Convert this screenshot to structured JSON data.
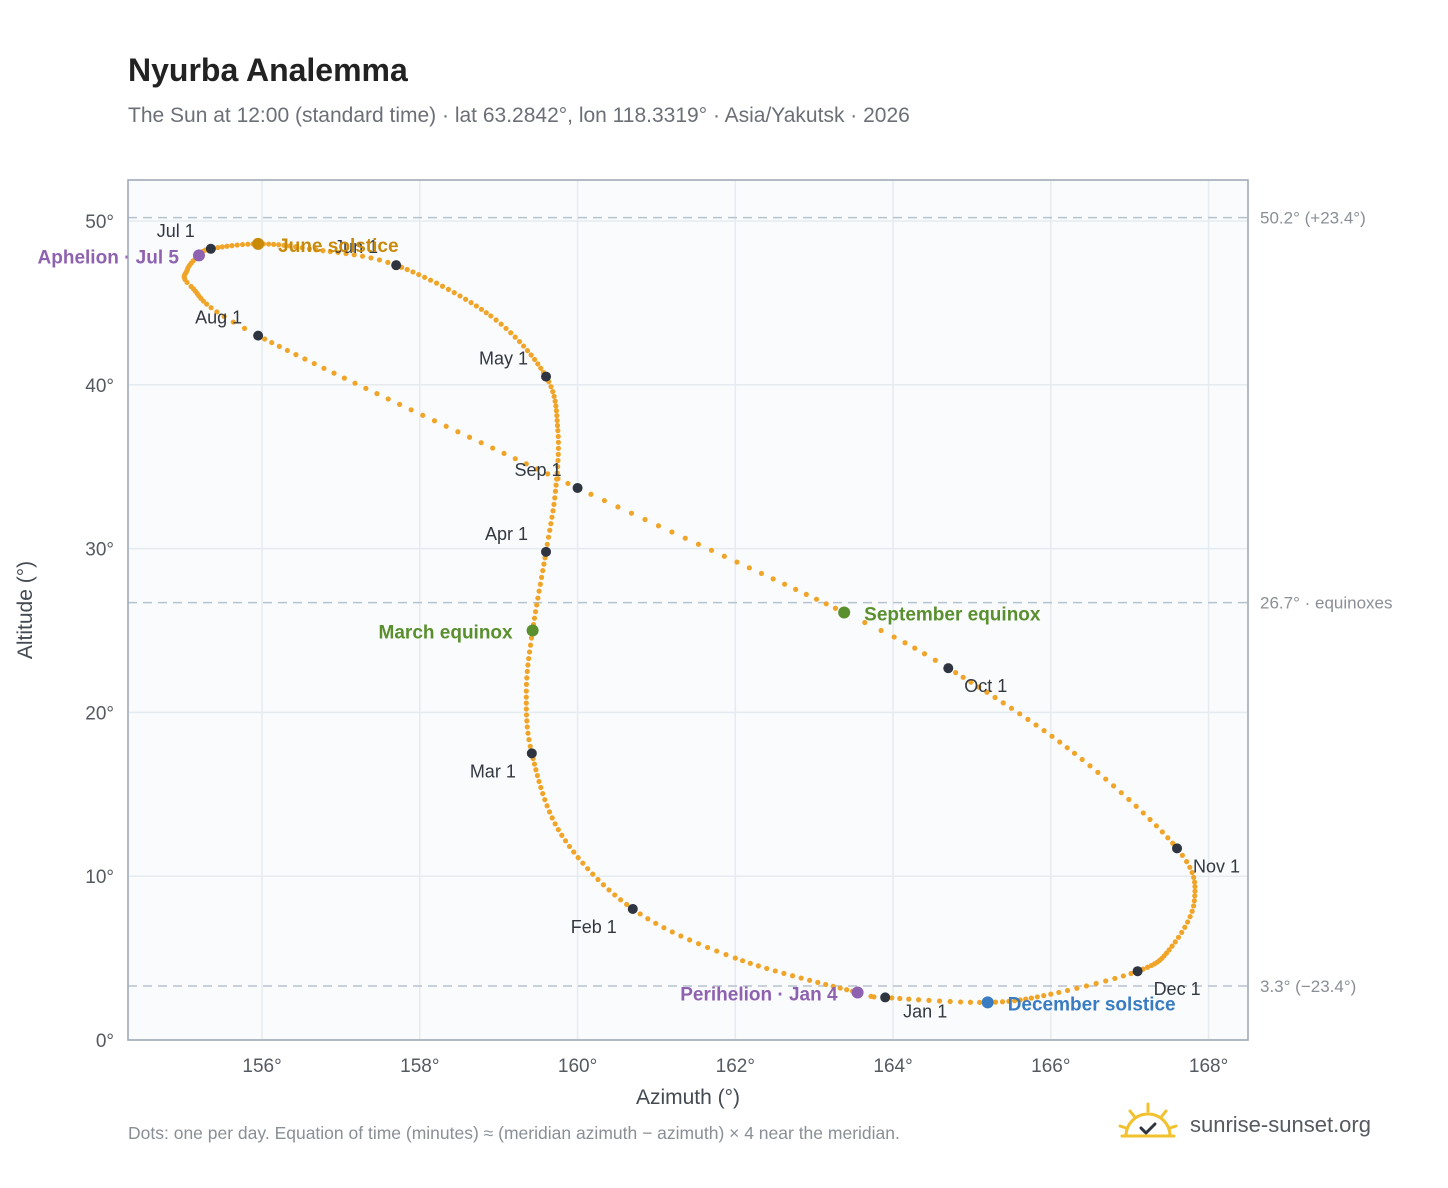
{
  "header": {
    "title": "Nyurba Analemma",
    "subtitle": "The Sun at 12:00 (standard time) · lat 63.2842°, lon 118.3319° · Asia/Yakutsk · 2026"
  },
  "footnote": "Dots: one per day. Equation of time (minutes) ≈ (meridian azimuth − azimuth) × 4 near the meridian.",
  "brand": {
    "name": "sunrise-sunset.org",
    "icon": "sun-check-icon"
  },
  "colors": {
    "curve": "#f0a529",
    "month_marker": "#2f3540",
    "june_solstice": "#c98a0a",
    "december_solstice": "#3a7cc2",
    "equinox": "#5a8f2e",
    "apsis": "#8e62b0",
    "reference_line": "#b7c2cf",
    "plot_bg": "#f9fbfd",
    "grid": "#e6ebf0",
    "axis": "#9aa5b3"
  },
  "chart_data": {
    "type": "scatter",
    "xlabel": "Azimuth (°)",
    "ylabel": "Altitude (°)",
    "xlim": [
      154.3,
      168.5
    ],
    "ylim": [
      0,
      52.5
    ],
    "xticks": [
      156,
      158,
      160,
      162,
      164,
      166,
      168
    ],
    "yticks": [
      0,
      10,
      20,
      30,
      40,
      50
    ],
    "tick_suffix": "°",
    "grid": true,
    "dot_interval_days": 1,
    "track_anchors": [
      {
        "day": 1,
        "az": 163.9,
        "alt": 2.6
      },
      {
        "day": 4,
        "az": 163.55,
        "alt": 2.9
      },
      {
        "day": 20,
        "az": 162.0,
        "alt": 5.0
      },
      {
        "day": 32,
        "az": 160.7,
        "alt": 8.0
      },
      {
        "day": 46,
        "az": 159.8,
        "alt": 12.5
      },
      {
        "day": 60,
        "az": 159.42,
        "alt": 17.5
      },
      {
        "day": 70,
        "az": 159.35,
        "alt": 21.3
      },
      {
        "day": 79,
        "az": 159.43,
        "alt": 25.0
      },
      {
        "day": 91,
        "az": 159.6,
        "alt": 29.8
      },
      {
        "day": 100,
        "az": 159.72,
        "alt": 33.5
      },
      {
        "day": 110,
        "az": 159.75,
        "alt": 37.2
      },
      {
        "day": 121,
        "az": 159.6,
        "alt": 40.5
      },
      {
        "day": 135,
        "az": 158.9,
        "alt": 44.2
      },
      {
        "day": 152,
        "az": 157.7,
        "alt": 47.3
      },
      {
        "day": 163,
        "az": 156.6,
        "alt": 48.3
      },
      {
        "day": 172,
        "az": 155.95,
        "alt": 48.6
      },
      {
        "day": 182,
        "az": 155.35,
        "alt": 48.3
      },
      {
        "day": 186,
        "az": 155.2,
        "alt": 47.9
      },
      {
        "day": 193,
        "az": 155.05,
        "alt": 47.0
      },
      {
        "day": 200,
        "az": 155.1,
        "alt": 46.0
      },
      {
        "day": 213,
        "az": 155.95,
        "alt": 43.0
      },
      {
        "day": 244,
        "az": 160.0,
        "alt": 33.7
      },
      {
        "day": 266,
        "az": 163.38,
        "alt": 26.1
      },
      {
        "day": 274,
        "az": 164.7,
        "alt": 22.7
      },
      {
        "day": 290,
        "az": 166.3,
        "alt": 17.5
      },
      {
        "day": 305,
        "az": 167.6,
        "alt": 11.7
      },
      {
        "day": 315,
        "az": 167.82,
        "alt": 8.5
      },
      {
        "day": 325,
        "az": 167.5,
        "alt": 5.5
      },
      {
        "day": 335,
        "az": 167.1,
        "alt": 4.2
      },
      {
        "day": 345,
        "az": 166.0,
        "alt": 2.8
      },
      {
        "day": 355,
        "az": 165.2,
        "alt": 2.3
      },
      {
        "day": 366,
        "az": 163.9,
        "alt": 2.6
      }
    ],
    "month_markers": [
      {
        "label": "Jan 1",
        "az": 163.9,
        "alt": 2.6,
        "anchor": "start",
        "dx": 18,
        "dy": 20
      },
      {
        "label": "Feb 1",
        "az": 160.7,
        "alt": 8.0,
        "anchor": "end",
        "dx": -16,
        "dy": 24
      },
      {
        "label": "Mar 1",
        "az": 159.42,
        "alt": 17.5,
        "anchor": "end",
        "dx": -16,
        "dy": 24
      },
      {
        "label": "Apr 1",
        "az": 159.6,
        "alt": 29.8,
        "anchor": "end",
        "dx": -18,
        "dy": -12
      },
      {
        "label": "May 1",
        "az": 159.6,
        "alt": 40.5,
        "anchor": "end",
        "dx": -18,
        "dy": -12
      },
      {
        "label": "Jun 1",
        "az": 157.7,
        "alt": 47.3,
        "anchor": "end",
        "dx": -18,
        "dy": -12
      },
      {
        "label": "Jul 1",
        "az": 155.35,
        "alt": 48.3,
        "anchor": "end",
        "dx": -16,
        "dy": -12
      },
      {
        "label": "Aug 1",
        "az": 155.95,
        "alt": 43.0,
        "anchor": "end",
        "dx": -16,
        "dy": -12
      },
      {
        "label": "Sep 1",
        "az": 160.0,
        "alt": 33.7,
        "anchor": "end",
        "dx": -16,
        "dy": -12
      },
      {
        "label": "Oct 1",
        "az": 164.7,
        "alt": 22.7,
        "anchor": "start",
        "dx": 16,
        "dy": 24
      },
      {
        "label": "Nov 1",
        "az": 167.6,
        "alt": 11.7,
        "anchor": "start",
        "dx": 16,
        "dy": 24
      },
      {
        "label": "Dec 1",
        "az": 167.1,
        "alt": 4.2,
        "anchor": "start",
        "dx": 16,
        "dy": 24
      }
    ],
    "events": [
      {
        "label": "June solstice",
        "az": 155.95,
        "alt": 48.6,
        "color": "#c98a0a",
        "anchor": "start",
        "dx": 20,
        "dy": 8
      },
      {
        "label": "December solstice",
        "az": 165.2,
        "alt": 2.3,
        "color": "#3a7cc2",
        "anchor": "start",
        "dx": 20,
        "dy": 8
      },
      {
        "label": "March equinox",
        "az": 159.43,
        "alt": 25.0,
        "color": "#5a8f2e",
        "anchor": "end",
        "dx": -20,
        "dy": 8
      },
      {
        "label": "September equinox",
        "az": 163.38,
        "alt": 26.1,
        "color": "#5a8f2e",
        "anchor": "start",
        "dx": 20,
        "dy": 8
      },
      {
        "label": "Aphelion · Jul 5",
        "az": 155.2,
        "alt": 47.9,
        "color": "#8e62b0",
        "anchor": "end",
        "dx": -20,
        "dy": 8
      },
      {
        "label": "Perihelion · Jan 4",
        "az": 163.55,
        "alt": 2.9,
        "color": "#8e62b0",
        "anchor": "end",
        "dx": -20,
        "dy": 8
      }
    ],
    "reference_lines": [
      {
        "alt": 50.2,
        "label": "50.2° (+23.4°)"
      },
      {
        "alt": 26.7,
        "label": "26.7° · equinoxes"
      },
      {
        "alt": 3.3,
        "label": "3.3° (−23.4°)"
      }
    ]
  }
}
